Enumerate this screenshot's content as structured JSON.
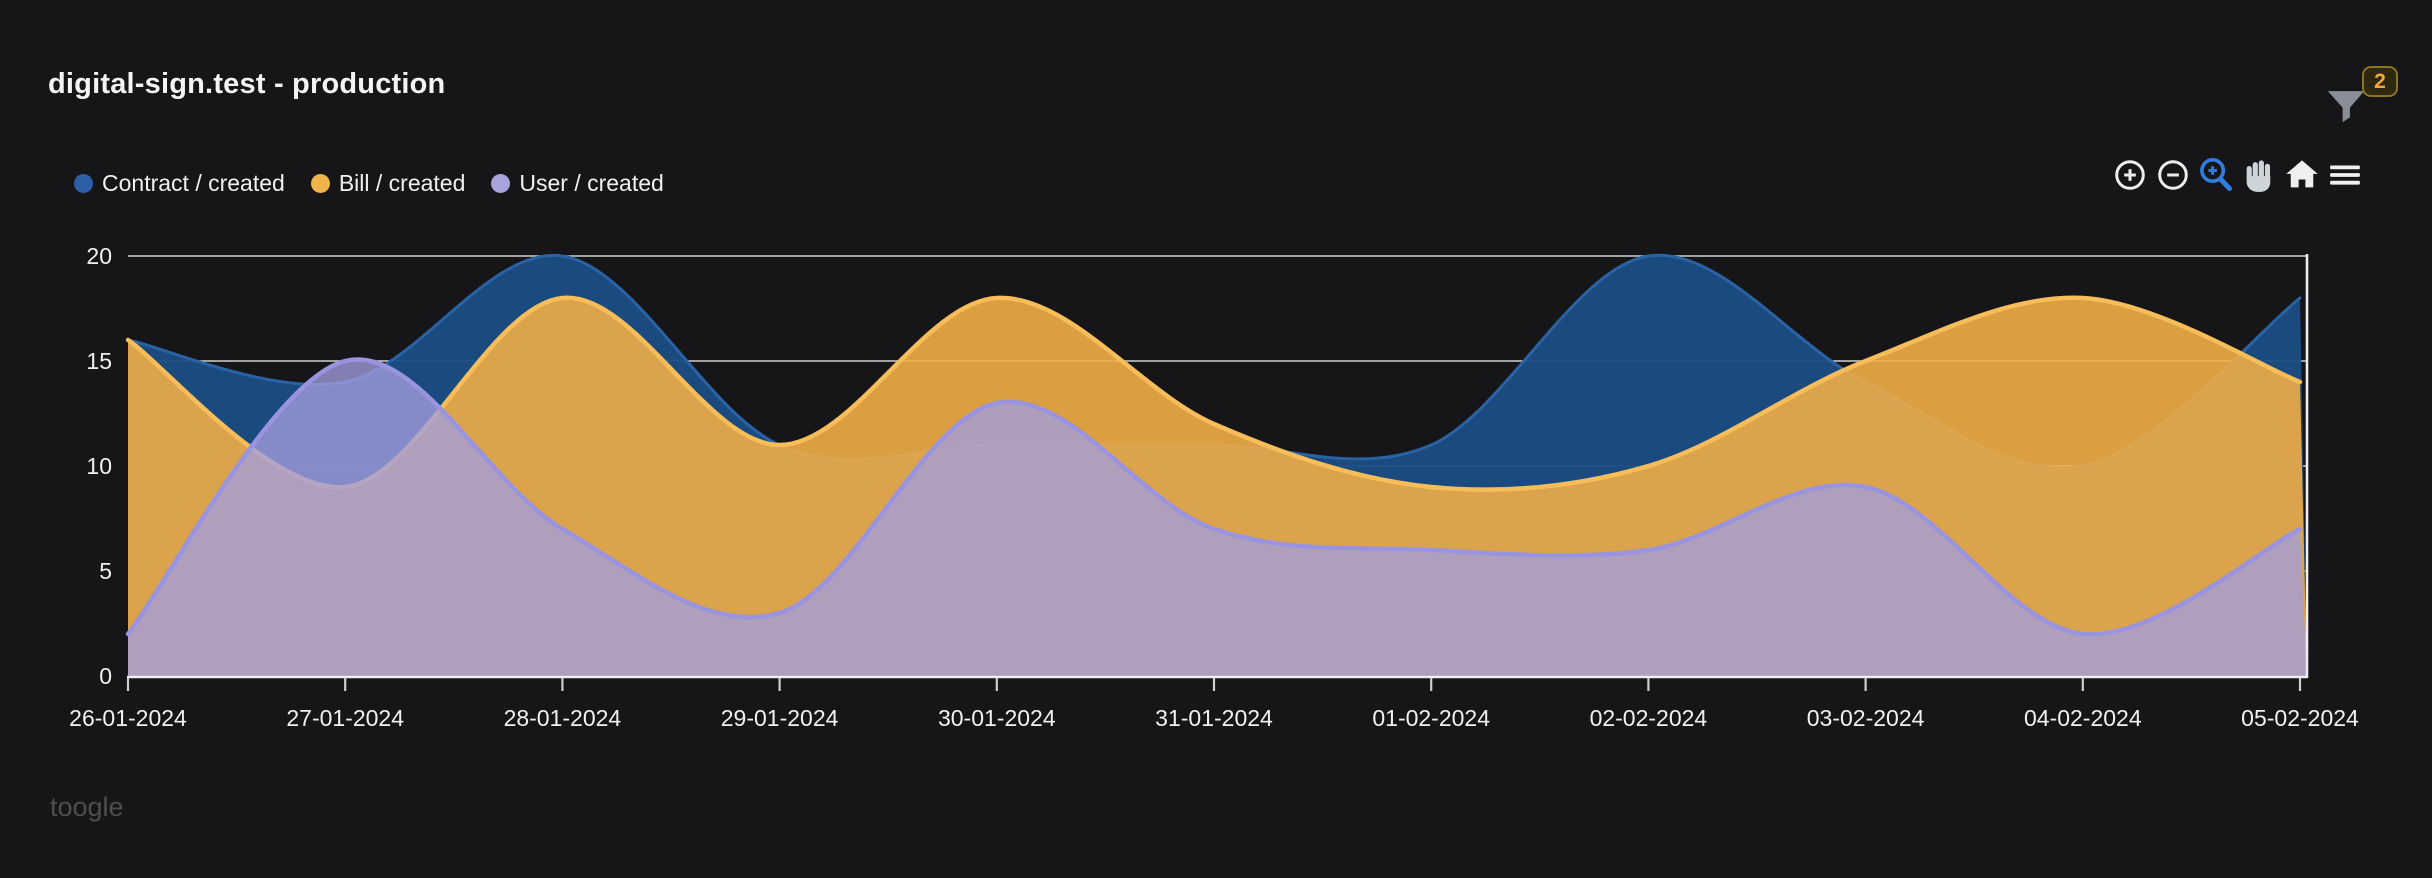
{
  "header": {
    "title": "digital-sign.test - production",
    "filter_badge": "2",
    "filter_icon": "funnel-icon"
  },
  "toolbar": {
    "icons": [
      {
        "name": "zoom-in",
        "active": false
      },
      {
        "name": "zoom-out",
        "active": false
      },
      {
        "name": "zoom-box-select",
        "active": true
      },
      {
        "name": "pan-hand",
        "active": false
      },
      {
        "name": "home-reset",
        "active": false
      },
      {
        "name": "menu",
        "active": false
      }
    ],
    "active_color": "#2f7de0"
  },
  "footer": {
    "toggle_label": "toogle"
  },
  "chart_data": {
    "type": "area",
    "smooth": true,
    "grid": true,
    "legend_position": "top-left",
    "x_type": "category",
    "categories": [
      "26-01-2024",
      "27-01-2024",
      "28-01-2024",
      "29-01-2024",
      "30-01-2024",
      "31-01-2024",
      "01-02-2024",
      "02-02-2024",
      "03-02-2024",
      "04-02-2024",
      "05-02-2024"
    ],
    "ylim": [
      0,
      20
    ],
    "yticks": [
      0,
      5,
      10,
      15,
      20
    ],
    "ytick_labels": [
      "0",
      "5",
      "10",
      "15",
      "20"
    ],
    "series": [
      {
        "name": "Contract / created",
        "color": "#2d5fa9",
        "fill": "#1c4d82",
        "stroke": "#2a62a6",
        "fill_opacity": 0.97,
        "stroke_width": 3,
        "values": [
          16,
          14,
          20,
          11,
          11,
          11,
          11,
          20,
          14,
          10,
          18
        ]
      },
      {
        "name": "Bill / created",
        "color": "#f0b44c",
        "fill": "#f1ad46",
        "stroke": "#f7bd58",
        "fill_opacity": 0.9,
        "stroke_width": 4.5,
        "values": [
          16,
          9,
          18,
          11,
          18,
          12,
          9,
          10,
          15,
          18,
          14
        ]
      },
      {
        "name": "User / created",
        "color": "#a9a3dd",
        "fill": "#a39ede",
        "stroke": "#9a94e0",
        "fill_opacity": 0.78,
        "stroke_width": 4.5,
        "values": [
          2,
          15,
          7,
          3,
          13,
          7,
          6,
          6,
          9,
          2,
          7
        ]
      }
    ]
  }
}
